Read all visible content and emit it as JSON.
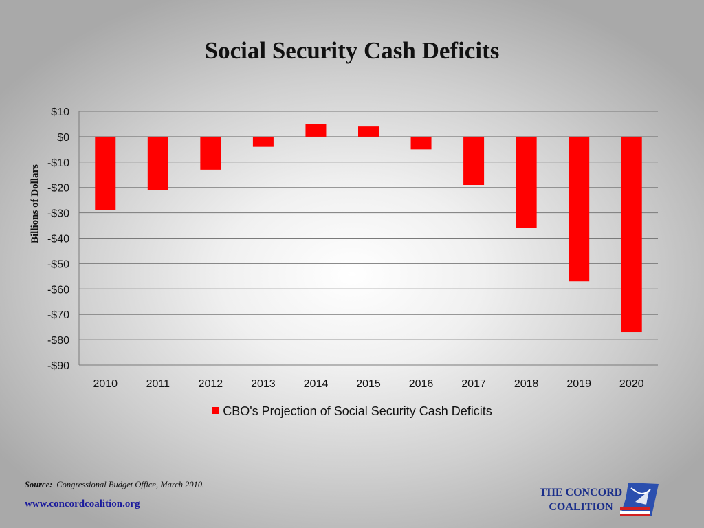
{
  "title": "Social Security Cash Deficits",
  "chart_data": {
    "type": "bar",
    "title": "Social Security Cash Deficits",
    "categories": [
      "2010",
      "2011",
      "2012",
      "2013",
      "2014",
      "2015",
      "2016",
      "2017",
      "2018",
      "2019",
      "2020"
    ],
    "series": [
      {
        "name": "CBO's Projection of Social Security Cash Deficits",
        "color": "#ff0000",
        "values": [
          -29,
          -21,
          -13,
          -4,
          5,
          4,
          -5,
          -19,
          -36,
          -57,
          -77
        ]
      }
    ],
    "ylabel": "Billions of Dollars",
    "xlabel": "",
    "ylim": [
      -90,
      10
    ],
    "yticks": [
      10,
      0,
      -10,
      -20,
      -30,
      -40,
      -50,
      -60,
      -70,
      -80,
      -90
    ],
    "ytick_labels": [
      "$10",
      "$0",
      "-$10",
      "-$20",
      "-$30",
      "-$40",
      "-$50",
      "-$60",
      "-$70",
      "-$80",
      "-$90"
    ],
    "grid": true,
    "legend_position": "bottom"
  },
  "legend": {
    "label": "CBO's Projection of Social Security Cash Deficits"
  },
  "footer": {
    "source_label": "Source:",
    "source_text": "Congressional Budget Office, March 2010.",
    "url": "www.concordcoalition.org",
    "org_line1": "THE CONCORD",
    "org_line2": "COALITION"
  },
  "logo": {
    "icon": "concord-coalition-logo-icon"
  }
}
